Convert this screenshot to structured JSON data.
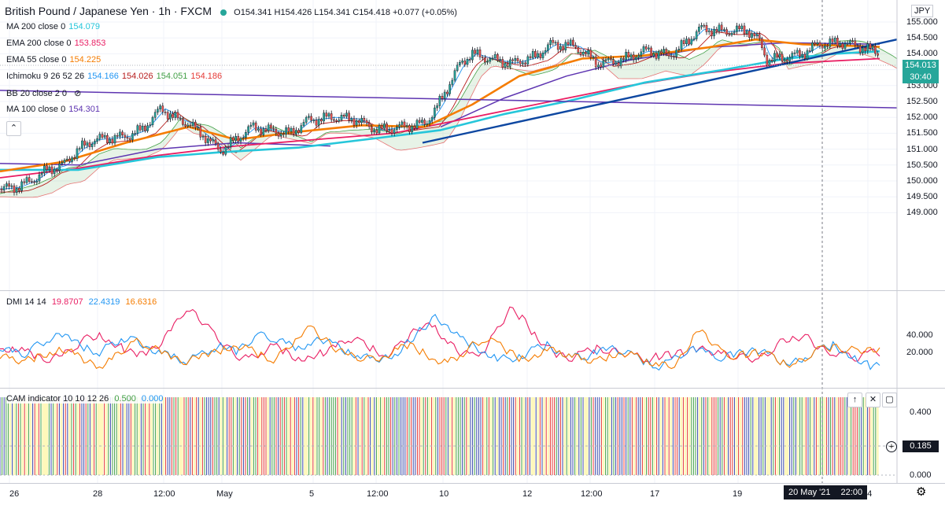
{
  "header": {
    "title": "British Pound / Japanese Yen · 1h · FXCM",
    "ohlc": "O154.341 H154.426 L154.341 C154.418 +0.077 (+0.05%)",
    "currency": "JPY"
  },
  "indicators": [
    {
      "name": "MA 200 close 0",
      "values": [
        "154.079"
      ],
      "colors": [
        "#26c6da"
      ]
    },
    {
      "name": "EMA 200 close 0",
      "values": [
        "153.853"
      ],
      "colors": [
        "#e91e63"
      ]
    },
    {
      "name": "EMA 55 close 0",
      "values": [
        "154.225"
      ],
      "colors": [
        "#f57c00"
      ]
    },
    {
      "name": "Ichimoku 9 26 52 26",
      "values": [
        "154.166",
        "154.026",
        "154.051",
        "154.186"
      ],
      "colors": [
        "#2196f3",
        "#b71c1c",
        "#43a047",
        "#e53935"
      ]
    },
    {
      "name": "BB 20 close 2 0",
      "values": [],
      "colors": []
    },
    {
      "name": "MA 100 close 0",
      "values": [
        "154.301"
      ],
      "colors": [
        "#5e35b1"
      ]
    }
  ],
  "dmi": {
    "name": "DMI 14 14",
    "values": [
      "19.8707",
      "22.4319",
      "16.6316"
    ],
    "colors": [
      "#e91e63",
      "#2196f3",
      "#f57c00"
    ]
  },
  "cam": {
    "name": "CAM indicator 10 10 12 26",
    "values": [
      "0.500",
      "0.000"
    ],
    "colors": [
      "#43a047",
      "#2196f3"
    ]
  },
  "price_axis": {
    "ticks": [
      "155.000",
      "154.500",
      "154.000",
      "153.500",
      "153.000",
      "152.500",
      "152.000",
      "151.500",
      "151.000",
      "150.500",
      "150.000",
      "149.500",
      "149.000"
    ],
    "last_price": "154.013",
    "countdown": "30:40"
  },
  "dmi_axis": {
    "ticks": [
      "40.000",
      "20.000"
    ]
  },
  "cam_axis": {
    "ticks": [
      "0.400",
      "0.000"
    ],
    "current": "0.185"
  },
  "time_axis": {
    "labels": [
      "26",
      "28",
      "12:00",
      "May",
      "5",
      "12:00",
      "10",
      "12",
      "12:00",
      "17",
      "19",
      "24"
    ],
    "crosshair_label": "20 May '21",
    "crosshair_time": "22:00"
  },
  "chart_data": {
    "type": "line",
    "symbol": "British Pound / Japanese Yen",
    "interval": "1h",
    "ylim": [
      149.0,
      155.0
    ],
    "close_path": [
      {
        "t": 0,
        "price": 149.75
      },
      {
        "t": 20,
        "price": 149.8
      },
      {
        "t": 40,
        "price": 150.0
      },
      {
        "t": 60,
        "price": 150.35
      },
      {
        "t": 80,
        "price": 150.5
      },
      {
        "t": 100,
        "price": 151.0
      },
      {
        "t": 120,
        "price": 151.3
      },
      {
        "t": 140,
        "price": 151.35
      },
      {
        "t": 160,
        "price": 151.4
      },
      {
        "t": 180,
        "price": 151.6
      },
      {
        "t": 195,
        "price": 152.0
      },
      {
        "t": 205,
        "price": 152.3
      },
      {
        "t": 220,
        "price": 152.0
      },
      {
        "t": 240,
        "price": 151.8
      },
      {
        "t": 260,
        "price": 151.4
      },
      {
        "t": 280,
        "price": 150.95
      },
      {
        "t": 300,
        "price": 151.3
      },
      {
        "t": 320,
        "price": 151.7
      },
      {
        "t": 340,
        "price": 151.6
      },
      {
        "t": 370,
        "price": 151.5
      },
      {
        "t": 390,
        "price": 151.9
      },
      {
        "t": 420,
        "price": 152.0
      },
      {
        "t": 450,
        "price": 151.95
      },
      {
        "t": 480,
        "price": 151.6
      },
      {
        "t": 510,
        "price": 151.7
      },
      {
        "t": 540,
        "price": 151.8
      },
      {
        "t": 555,
        "price": 152.3
      },
      {
        "t": 570,
        "price": 153.0
      },
      {
        "t": 585,
        "price": 153.7
      },
      {
        "t": 600,
        "price": 154.0
      },
      {
        "t": 620,
        "price": 153.85
      },
      {
        "t": 650,
        "price": 153.7
      },
      {
        "t": 680,
        "price": 153.9
      },
      {
        "t": 700,
        "price": 154.3
      },
      {
        "t": 730,
        "price": 154.25
      },
      {
        "t": 760,
        "price": 153.7
      },
      {
        "t": 790,
        "price": 153.8
      },
      {
        "t": 820,
        "price": 154.1
      },
      {
        "t": 850,
        "price": 153.95
      },
      {
        "t": 870,
        "price": 154.3
      },
      {
        "t": 890,
        "price": 154.8
      },
      {
        "t": 920,
        "price": 154.7
      },
      {
        "t": 950,
        "price": 154.75
      },
      {
        "t": 965,
        "price": 154.4
      },
      {
        "t": 975,
        "price": 153.8
      },
      {
        "t": 1000,
        "price": 153.9
      },
      {
        "t": 1020,
        "price": 154.0
      },
      {
        "t": 1040,
        "price": 154.3
      },
      {
        "t": 1070,
        "price": 154.35
      },
      {
        "t": 1090,
        "price": 154.25
      },
      {
        "t": 1110,
        "price": 154.1
      },
      {
        "t": 1118,
        "price": 154.0
      }
    ],
    "ma200": [
      {
        "t": 0,
        "price": 150.35
      },
      {
        "t": 100,
        "price": 150.35
      },
      {
        "t": 200,
        "price": 150.75
      },
      {
        "t": 280,
        "price": 150.9
      },
      {
        "t": 380,
        "price": 151.05
      },
      {
        "t": 480,
        "price": 151.35
      },
      {
        "t": 560,
        "price": 151.6
      },
      {
        "t": 640,
        "price": 152.1
      },
      {
        "t": 720,
        "price": 152.5
      },
      {
        "t": 820,
        "price": 153.1
      },
      {
        "t": 920,
        "price": 153.5
      },
      {
        "t": 1000,
        "price": 153.85
      },
      {
        "t": 1060,
        "price": 154.0
      },
      {
        "t": 1118,
        "price": 154.08
      }
    ],
    "ema200": [
      {
        "t": 0,
        "price": 150.1
      },
      {
        "t": 100,
        "price": 150.4
      },
      {
        "t": 200,
        "price": 150.8
      },
      {
        "t": 300,
        "price": 151.1
      },
      {
        "t": 400,
        "price": 151.3
      },
      {
        "t": 500,
        "price": 151.5
      },
      {
        "t": 600,
        "price": 152.0
      },
      {
        "t": 700,
        "price": 152.5
      },
      {
        "t": 800,
        "price": 153.0
      },
      {
        "t": 900,
        "price": 153.4
      },
      {
        "t": 1000,
        "price": 153.7
      },
      {
        "t": 1118,
        "price": 153.85
      }
    ],
    "ema55": [
      {
        "t": 0,
        "price": 150.3
      },
      {
        "t": 80,
        "price": 150.6
      },
      {
        "t": 160,
        "price": 151.2
      },
      {
        "t": 240,
        "price": 151.7
      },
      {
        "t": 300,
        "price": 151.3
      },
      {
        "t": 380,
        "price": 151.55
      },
      {
        "t": 460,
        "price": 151.75
      },
      {
        "t": 540,
        "price": 151.7
      },
      {
        "t": 600,
        "price": 152.4
      },
      {
        "t": 660,
        "price": 153.3
      },
      {
        "t": 740,
        "price": 153.85
      },
      {
        "t": 820,
        "price": 153.95
      },
      {
        "t": 900,
        "price": 154.2
      },
      {
        "t": 960,
        "price": 154.45
      },
      {
        "t": 1020,
        "price": 154.3
      },
      {
        "t": 1118,
        "price": 154.22
      }
    ],
    "ma100": [
      {
        "t": 0,
        "price": 150.55
      },
      {
        "t": 100,
        "price": 150.5
      },
      {
        "t": 200,
        "price": 151.0
      },
      {
        "t": 300,
        "price": 151.2
      },
      {
        "t": 420,
        "price": 151.1
      }
    ],
    "ma100b": [
      {
        "t": 560,
        "price": 151.7
      },
      {
        "t": 640,
        "price": 152.6
      },
      {
        "t": 720,
        "price": 153.3
      },
      {
        "t": 800,
        "price": 153.8
      },
      {
        "t": 900,
        "price": 154.2
      },
      {
        "t": 1000,
        "price": 154.35
      },
      {
        "t": 1118,
        "price": 154.3
      }
    ],
    "trendline_long": [
      {
        "t": 0,
        "price": 152.85
      },
      {
        "t": 1140,
        "price": 152.3
      }
    ],
    "trendline_up": [
      {
        "t": 537,
        "price": 151.2
      },
      {
        "t": 1140,
        "price": 154.45
      }
    ],
    "dmi_series": [
      {
        "name": "DI+",
        "color": "#e91e63",
        "values": [
          20,
          23,
          21,
          17,
          16,
          18,
          23,
          28,
          30,
          26,
          22,
          18,
          20,
          26,
          35,
          46,
          40,
          32,
          25,
          18,
          16,
          20,
          24,
          20,
          16,
          18,
          20,
          23,
          28,
          26,
          22,
          18,
          23,
          30,
          36,
          34,
          26,
          20,
          18,
          22,
          33,
          45,
          40,
          30,
          23,
          18,
          17,
          20,
          22,
          21,
          20,
          18,
          16,
          18,
          19,
          20,
          22,
          21,
          19,
          18,
          17,
          16,
          21,
          27,
          29,
          28,
          22,
          20,
          18,
          17,
          20
        ]
      },
      {
        "name": "DI-",
        "color": "#2196f3",
        "values": [
          23,
          20,
          19,
          24,
          28,
          30,
          26,
          22,
          20,
          25,
          28,
          27,
          22,
          20,
          17,
          15,
          18,
          22,
          24,
          20,
          26,
          30,
          28,
          25,
          22,
          26,
          27,
          24,
          20,
          18,
          16,
          17,
          20,
          27,
          34,
          40,
          36,
          28,
          24,
          20,
          17,
          16,
          18,
          22,
          24,
          20,
          18,
          17,
          20,
          22,
          21,
          18,
          14,
          12,
          15,
          20,
          22,
          19,
          17,
          19,
          20,
          21,
          18,
          14,
          15,
          18,
          22,
          24,
          20,
          16,
          12
        ]
      },
      {
        "name": "ADX",
        "color": "#f57c00",
        "values": [
          18,
          16,
          15,
          17,
          20,
          22,
          19,
          14,
          12,
          16,
          22,
          26,
          24,
          20,
          16,
          15,
          17,
          19,
          22,
          24,
          22,
          18,
          16,
          21,
          30,
          34,
          28,
          22,
          18,
          17,
          16,
          18,
          22,
          24,
          20,
          16,
          14,
          18,
          24,
          28,
          25,
          20,
          16,
          18,
          22,
          20,
          18,
          16,
          15,
          18,
          20,
          18,
          15,
          13,
          12,
          18,
          34,
          28,
          20,
          18,
          19,
          20,
          18,
          14,
          13,
          18,
          22,
          23,
          22,
          21,
          22
        ]
      }
    ],
    "cam_values": {
      "current": 0.185
    }
  }
}
